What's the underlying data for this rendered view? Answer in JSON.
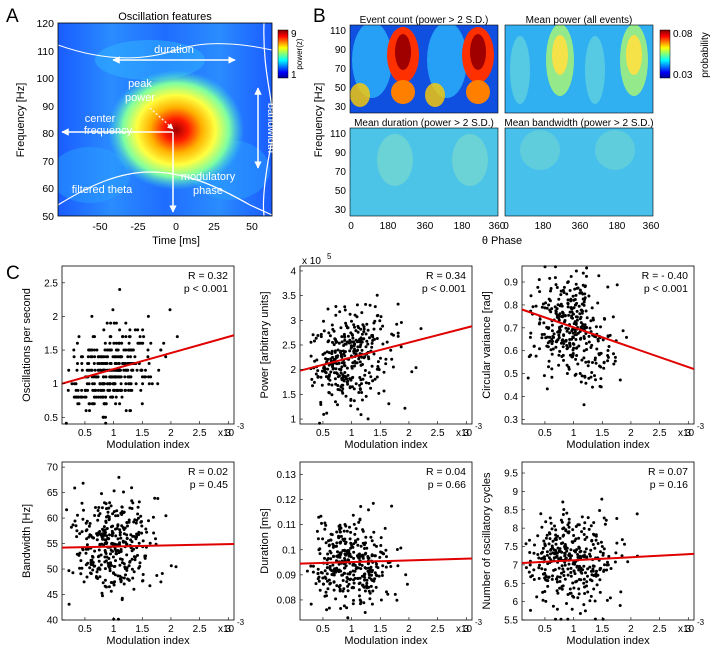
{
  "panel_labels": {
    "a": "A",
    "b": "B",
    "c": "C"
  },
  "panel_a": {
    "title": "Oscillation features",
    "xlabel": "Time [ms]",
    "ylabel": "Frequency [Hz]",
    "x_ticks": [
      "-50",
      "-25",
      "0",
      "25",
      "50"
    ],
    "y_ticks": [
      "120",
      "110",
      "100",
      "90",
      "80",
      "70",
      "60",
      "50"
    ],
    "colorbar_label": "power(z)",
    "colorbar_ticks": [
      "9",
      "1"
    ],
    "annotations": {
      "duration": "duration",
      "peak_power": "peak",
      "peak_power_2": "power",
      "center_frequency": "center",
      "center_frequency_2": "frequency",
      "bandwidth": "bandwidth",
      "modulatory_phase": "modulatory",
      "modulatory_phase_2": "phase",
      "filtered_theta": "filtered theta"
    }
  },
  "panel_b": {
    "titles": [
      "Event count (power > 2 S.D.)",
      "Mean power (all events)",
      "Mean duration (power > 2 S.D.)",
      "Mean bandwidth (power > 2 S.D.)"
    ],
    "ylabel": "Frequency [Hz]",
    "xlabel": "θ Phase",
    "y_ticks": [
      "110",
      "90",
      "70",
      "50",
      "30"
    ],
    "x_ticks": [
      "0",
      "180",
      "360",
      "180",
      "360"
    ],
    "colorbar_label": "probability",
    "colorbar_ticks": [
      "0.08",
      "0.03"
    ]
  },
  "chart_data": [
    {
      "type": "scatter",
      "ylabel": "Oscillations per second",
      "xlabel": "Modulation index",
      "xscale": "x10",
      "xscale_exp": "-3",
      "yscale": "",
      "yscale_exp": "",
      "x_ticks": [
        "0.5",
        "1",
        "1.5",
        "2",
        "2.5",
        "3"
      ],
      "y_ticks": [
        "2.5",
        "2",
        "1.5",
        "1",
        "0.5"
      ],
      "xlim": [
        0.1,
        3.1
      ],
      "ylim": [
        0.4,
        2.75
      ],
      "ytick_values": [
        2.5,
        2.0,
        1.5,
        1.0,
        0.5
      ],
      "stats_r": "R = 0.32",
      "stats_p": "p < 0.001",
      "fit": [
        [
          0.1,
          1.0
        ],
        [
          3.1,
          1.72
        ]
      ],
      "center": [
        0.8,
        1.15
      ],
      "spread": [
        0.45,
        0.3
      ],
      "n": 360,
      "quantize": 0.1,
      "seed": 11
    },
    {
      "type": "scatter",
      "ylabel": "Power [arbitrary units]",
      "xlabel": "Modulation index",
      "xscale": "x10",
      "xscale_exp": "-3",
      "yscale": "x 10",
      "yscale_exp": "5",
      "x_ticks": [
        "0.5",
        "1",
        "1.5",
        "2",
        "2.5",
        "3"
      ],
      "y_ticks": [
        "4",
        "3.5",
        "3",
        "2.5",
        "2",
        "1.5",
        "1"
      ],
      "xlim": [
        0.1,
        3.1
      ],
      "ylim": [
        0.9,
        4.1
      ],
      "ytick_values": [
        4.0,
        3.5,
        3.0,
        2.5,
        2.0,
        1.5,
        1.0
      ],
      "stats_r": "R = 0.34",
      "stats_p": "p < 0.001",
      "fit": [
        [
          0.1,
          1.98
        ],
        [
          3.1,
          2.88
        ]
      ],
      "center": [
        0.8,
        2.25
      ],
      "spread": [
        0.45,
        0.45
      ],
      "n": 360,
      "quantize": 0,
      "seed": 23
    },
    {
      "type": "scatter",
      "ylabel": "Circular variance [rad]",
      "xlabel": "Modulation index",
      "xscale": "x10",
      "xscale_exp": "-3",
      "yscale": "",
      "yscale_exp": "",
      "x_ticks": [
        "0.5",
        "1",
        "1.5",
        "2",
        "2.5",
        "3"
      ],
      "y_ticks": [
        "0.9",
        "0.8",
        "0.7",
        "0.6",
        "0.5",
        "0.4",
        "0.3"
      ],
      "xlim": [
        0.1,
        3.1
      ],
      "ylim": [
        0.28,
        0.97
      ],
      "ytick_values": [
        0.9,
        0.8,
        0.7,
        0.6,
        0.5,
        0.4,
        0.3
      ],
      "stats_r": "R = - 0.40",
      "stats_p": "p < 0.001",
      "fit": [
        [
          0.1,
          0.78
        ],
        [
          3.1,
          0.52
        ]
      ],
      "center": [
        0.8,
        0.72
      ],
      "spread": [
        0.45,
        0.11
      ],
      "n": 360,
      "quantize": 0,
      "seed": 37
    },
    {
      "type": "scatter",
      "ylabel": "Bandwidth [Hz]",
      "xlabel": "Modulation index",
      "xscale": "x10",
      "xscale_exp": "-3",
      "yscale": "",
      "yscale_exp": "",
      "x_ticks": [
        "0.5",
        "1",
        "1.5",
        "2",
        "2.5",
        "3"
      ],
      "y_ticks": [
        "70",
        "65",
        "60",
        "55",
        "50",
        "45",
        "40"
      ],
      "xlim": [
        0.1,
        3.1
      ],
      "ylim": [
        40,
        71
      ],
      "ytick_values": [
        70,
        65,
        60,
        55,
        50,
        45,
        40
      ],
      "stats_r": "R = 0.02",
      "stats_p": "p = 0.45",
      "fit": [
        [
          0.1,
          54.2
        ],
        [
          3.1,
          54.9
        ]
      ],
      "center": [
        0.8,
        54.5
      ],
      "spread": [
        0.45,
        4.8
      ],
      "n": 360,
      "quantize": 0,
      "seed": 41
    },
    {
      "type": "scatter",
      "ylabel": "Duration [ms]",
      "xlabel": "Modulation index",
      "xscale": "x10",
      "xscale_exp": "-3",
      "yscale": "",
      "yscale_exp": "",
      "x_ticks": [
        "0.5",
        "1",
        "1.5",
        "2",
        "2.5",
        "3"
      ],
      "y_ticks": [
        "0.13",
        "0.12",
        "0.11",
        "0.1",
        "0.09",
        "0.08"
      ],
      "xlim": [
        0.1,
        3.1
      ],
      "ylim": [
        0.072,
        0.135
      ],
      "ytick_values": [
        0.13,
        0.12,
        0.11,
        0.1,
        0.09,
        0.08
      ],
      "stats_r": "R = 0.04",
      "stats_p": "p = 0.66",
      "fit": [
        [
          0.1,
          0.0945
        ],
        [
          3.1,
          0.0965
        ]
      ],
      "center": [
        0.8,
        0.096
      ],
      "spread": [
        0.45,
        0.0095
      ],
      "n": 360,
      "quantize": 0,
      "seed": 53
    },
    {
      "type": "scatter",
      "ylabel": "Number of oscillatory cycles",
      "xlabel": "Modulation index",
      "xscale": "x10",
      "xscale_exp": "-3",
      "yscale": "",
      "yscale_exp": "",
      "x_ticks": [
        "0.5",
        "1",
        "1.5",
        "2",
        "2.5",
        "3"
      ],
      "y_ticks": [
        "9.5",
        "9",
        "8.5",
        "8",
        "7.5",
        "7",
        "6.5",
        "6",
        "5.5"
      ],
      "xlim": [
        0.1,
        3.1
      ],
      "ylim": [
        5.5,
        9.8
      ],
      "ytick_values": [
        9.5,
        9.0,
        8.5,
        8.0,
        7.5,
        7.0,
        6.5,
        6.0,
        5.5
      ],
      "stats_r": "R = 0.07",
      "stats_p": "p = 0.16",
      "fit": [
        [
          0.1,
          7.05
        ],
        [
          3.1,
          7.3
        ]
      ],
      "center": [
        0.8,
        7.15
      ],
      "spread": [
        0.45,
        0.6
      ],
      "n": 360,
      "quantize": 0,
      "seed": 67
    }
  ]
}
